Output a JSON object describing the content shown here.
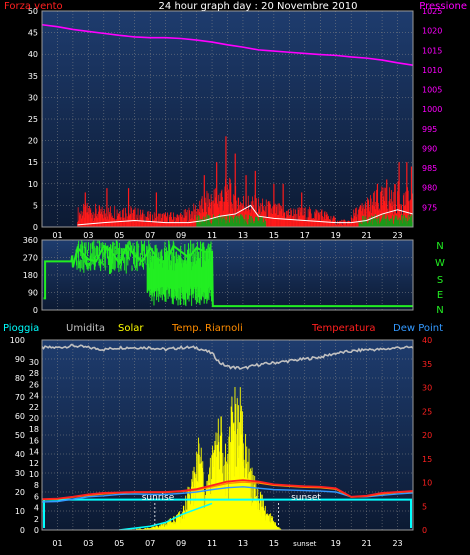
{
  "colors": {
    "background": "#000000",
    "plot_bg_top": "#1e3c6e",
    "plot_bg_bottom": "#0c1a33",
    "grid": "#8a8a8a",
    "wind": "#ff1a1a",
    "gust": "#ffffff",
    "wind_fill": "#1a9a1a",
    "pressure": "#ff00ff",
    "direction": "#22ee22",
    "rain": "#00ffff",
    "humidity": "#c0c0c0",
    "solar": "#ffff00",
    "temp_indoor": "#ff8c00",
    "temperature": "#ff2020",
    "dew_point": "#3399ff",
    "time_text": "#ffffff",
    "axis_text_left": "#ffffff",
    "axis_text_right": "#ff00ff",
    "compass_text": "#22ee22"
  },
  "header": {
    "title": "24 hour graph day : 20 Novembre 2010",
    "left_label": "Forza vento",
    "right_label": "Pressione"
  },
  "legend_bottom": {
    "rain": "Pioggia",
    "humidity": "Umidita",
    "solar": "Solar",
    "indoor": "Temp. Riarnoli",
    "temperature": "Temperatura",
    "dew": "Dew Point"
  },
  "compass": [
    "N",
    "W",
    "S",
    "E",
    "N"
  ],
  "sun_labels": {
    "sunrise": "sunrise",
    "sunset": "sunset"
  },
  "chart_data": [
    {
      "type": "line",
      "name": "wind_pressure",
      "xlim": [
        0,
        24
      ],
      "x_ticks": [
        "01",
        "03",
        "05",
        "07",
        "09",
        "11",
        "13",
        "15",
        "17",
        "19",
        "21",
        "23"
      ],
      "ylim": [
        0,
        50
      ],
      "y_ticks": [
        "0",
        "5",
        "10",
        "15",
        "20",
        "25",
        "30",
        "35",
        "40",
        "45",
        "50"
      ],
      "y2lim": [
        970,
        1025
      ],
      "y2_ticks": [
        "975",
        "980",
        "985",
        "990",
        "995",
        "1000",
        "1005",
        "1010",
        "1015",
        "1020",
        "1025"
      ],
      "series": [
        {
          "name": "Pressione",
          "x": [
            0,
            1,
            2,
            3,
            4,
            5,
            6,
            7,
            8,
            9,
            10,
            11,
            12,
            13,
            14,
            15,
            16,
            17,
            18,
            19,
            20,
            21,
            22,
            23,
            24
          ],
          "y": [
            1021.5,
            1021,
            1020.3,
            1019.8,
            1019.3,
            1018.8,
            1018.4,
            1018.2,
            1018.2,
            1018.0,
            1017.6,
            1017.1,
            1016.4,
            1015.8,
            1015.1,
            1014.8,
            1014.5,
            1014.2,
            1013.9,
            1013.7,
            1013.3,
            1013.0,
            1012.5,
            1011.8,
            1011.2
          ]
        },
        {
          "name": "wind_envelope",
          "x": [
            0,
            1,
            2,
            2.3,
            3,
            4,
            5,
            6,
            7,
            8,
            9,
            10,
            11,
            12,
            13,
            14,
            15,
            16,
            17,
            18,
            19,
            20,
            21,
            22,
            23,
            24
          ],
          "y": [
            0,
            0,
            0,
            4,
            5,
            4,
            5,
            4,
            3,
            3,
            3,
            5,
            8,
            10,
            7,
            6,
            5,
            4,
            4,
            4,
            2,
            3,
            6,
            8,
            9,
            7
          ]
        },
        {
          "name": "wind_spikes",
          "x": [
            2.8,
            4.2,
            5.6,
            7.4,
            10.5,
            11.3,
            11.9,
            12.5,
            13.2,
            13.8,
            15.0,
            15.6,
            16.8,
            21.7,
            22.3,
            23.1,
            23.6,
            23.9
          ],
          "y": [
            8,
            9,
            9,
            8,
            12,
            15,
            21,
            17,
            12,
            13,
            10,
            10,
            8,
            10,
            11,
            15,
            15,
            14
          ]
        },
        {
          "name": "gust_line",
          "x": [
            2.3,
            4,
            6,
            8,
            9.5,
            10.5,
            11.5,
            12.5,
            13.5,
            14,
            15,
            17,
            19,
            20,
            21,
            22,
            23,
            24
          ],
          "y": [
            0.5,
            1,
            1.5,
            1,
            1,
            1.5,
            2.5,
            3,
            5,
            2.5,
            2,
            1.5,
            1,
            1,
            1.5,
            3,
            4,
            3
          ]
        }
      ]
    },
    {
      "type": "line",
      "name": "wind_direction",
      "xlim": [
        0,
        24
      ],
      "ylim": [
        0,
        360
      ],
      "y_ticks": [
        "0",
        "90",
        "180",
        "270",
        "360"
      ],
      "series": [
        {
          "name": "direction",
          "x": [
            0.1,
            0.2,
            0.2,
            1.9,
            1.95,
            2.0,
            2.3,
            3.0,
            3.5,
            4.0,
            4.5,
            5.0,
            5.5,
            6.0,
            6.5,
            7.0,
            7.5,
            8.0,
            8.5,
            9.0,
            9.5,
            10.0,
            10.5,
            11.0,
            11.05,
            12.0,
            24.0
          ],
          "y": [
            60,
            60,
            250,
            250,
            280,
            220,
            320,
            260,
            250,
            330,
            300,
            240,
            330,
            280,
            250,
            320,
            260,
            240,
            330,
            300,
            270,
            320,
            300,
            300,
            20,
            20,
            20
          ]
        }
      ]
    },
    {
      "type": "line",
      "name": "rain_humidity_temp",
      "xlim": [
        0,
        24
      ],
      "ylim": [
        0,
        100
      ],
      "y_ticks": [
        "0",
        "10",
        "20",
        "30",
        "40",
        "50",
        "60",
        "70",
        "80",
        "90",
        "100"
      ],
      "y2lim": [
        0,
        40
      ],
      "y2_ticks": [
        "0",
        "5",
        "10",
        "15",
        "20",
        "25",
        "30",
        "35",
        "40"
      ],
      "y3_ticks": [
        "0",
        "2",
        "4",
        "6",
        "8",
        "10",
        "12",
        "14",
        "16",
        "18",
        "20",
        "22",
        "24",
        "26",
        "28",
        "30"
      ],
      "series": [
        {
          "name": "Umidita",
          "x": [
            0,
            1,
            2,
            3,
            4,
            5,
            6,
            7,
            8,
            9,
            10,
            11,
            11.5,
            12,
            13,
            14,
            15,
            16,
            17,
            18,
            19,
            20,
            21,
            22,
            23,
            24
          ],
          "y": [
            96,
            96,
            97,
            96,
            95,
            96,
            96,
            96,
            95,
            96,
            96,
            93,
            88,
            86,
            85,
            87,
            88,
            89,
            90,
            91,
            93,
            94,
            95,
            95,
            96,
            96
          ]
        },
        {
          "name": "Temperatura",
          "x": [
            0,
            1,
            2,
            3,
            4,
            5,
            6,
            7,
            8,
            9,
            10,
            11,
            12,
            13,
            14,
            15,
            16,
            17,
            18,
            19,
            20,
            21,
            22,
            23,
            24
          ],
          "y": [
            6.5,
            6.6,
            7.0,
            7.5,
            7.8,
            7.9,
            8.0,
            8.0,
            8.0,
            8.2,
            8.6,
            9.4,
            10.2,
            10.5,
            10.2,
            9.6,
            9.4,
            9.2,
            9.1,
            8.8,
            7.0,
            7.2,
            7.8,
            8.0,
            8.2
          ]
        },
        {
          "name": "Dew Point",
          "x": [
            0,
            1,
            2,
            3,
            4,
            5,
            6,
            7,
            8,
            9,
            10,
            11,
            12,
            13,
            14,
            15,
            16,
            17,
            18,
            19,
            20,
            21,
            22,
            23,
            24
          ],
          "y": [
            5.9,
            6.0,
            6.5,
            7.0,
            7.2,
            7.5,
            7.6,
            7.5,
            7.5,
            7.7,
            8.0,
            8.5,
            8.9,
            9.1,
            8.8,
            8.5,
            8.4,
            8.3,
            8.2,
            8.0,
            7.0,
            7.0,
            7.3,
            7.6,
            7.8
          ]
        },
        {
          "name": "Temp. Riarnoli",
          "x": [
            0,
            1,
            2,
            3,
            4,
            5,
            6,
            7,
            8,
            9,
            10,
            11,
            12,
            13,
            14,
            15,
            16,
            17,
            18,
            19,
            20,
            21,
            22,
            23,
            24
          ],
          "y": [
            6.4,
            6.5,
            6.9,
            7.3,
            7.6,
            7.8,
            7.9,
            7.9,
            7.9,
            8.1,
            8.4,
            9.1,
            9.8,
            10.1,
            9.9,
            9.4,
            9.2,
            9.0,
            8.9,
            8.6,
            6.9,
            7.1,
            7.6,
            7.9,
            8.1
          ]
        },
        {
          "name": "Pioggia",
          "x": [
            0,
            24
          ],
          "y": [
            16,
            16
          ]
        },
        {
          "name": "Solar",
          "x": [
            5.2,
            7,
            8,
            9,
            9.8,
            10.2,
            10.6,
            11,
            11.5,
            12,
            12.4,
            12.8,
            13.2,
            13.6,
            14,
            14.5,
            15,
            15.5
          ],
          "y": [
            0,
            0.5,
            1.5,
            4,
            12,
            19,
            8,
            17,
            24,
            15,
            31,
            29,
            19,
            12,
            9,
            5,
            2,
            0
          ]
        }
      ]
    }
  ]
}
